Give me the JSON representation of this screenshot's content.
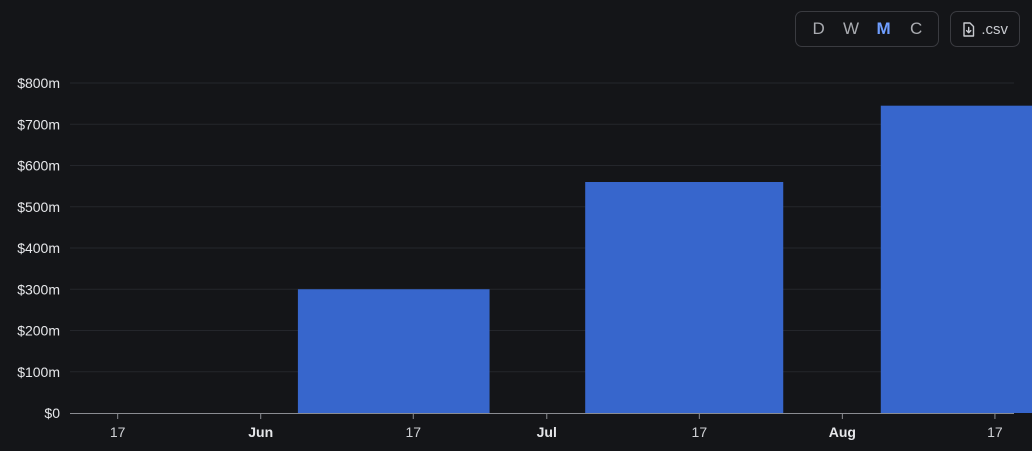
{
  "toolbar": {
    "periods": [
      {
        "label": "D",
        "active": false
      },
      {
        "label": "W",
        "active": false
      },
      {
        "label": "M",
        "active": true
      },
      {
        "label": "C",
        "active": false
      }
    ],
    "csv_label": ".csv",
    "csv_icon": "file-download-icon"
  },
  "colors": {
    "background": "#141518",
    "bar": "#3766cc",
    "active_period": "#6f9eff",
    "grid": "#24262b",
    "axis": "#8a8c91"
  },
  "chart_data": {
    "type": "bar",
    "x_axis_type": "date",
    "x_ticks": [
      {
        "date": "2024-05-17",
        "label": "17",
        "major": false
      },
      {
        "date": "2024-06-01",
        "label": "Jun",
        "major": true
      },
      {
        "date": "2024-06-17",
        "label": "17",
        "major": false
      },
      {
        "date": "2024-07-01",
        "label": "Jul",
        "major": true
      },
      {
        "date": "2024-07-17",
        "label": "17",
        "major": false
      },
      {
        "date": "2024-08-01",
        "label": "Aug",
        "major": true
      },
      {
        "date": "2024-08-17",
        "label": "17",
        "major": false
      }
    ],
    "categories": [
      "Jun",
      "Jul",
      "Aug"
    ],
    "bar_start_dates": [
      "2024-06-01",
      "2024-07-01",
      "2024-08-01"
    ],
    "values": [
      300,
      560,
      745
    ],
    "value_unit": "$m",
    "ylim": [
      0,
      800
    ],
    "y_ticks": [
      0,
      100,
      200,
      300,
      400,
      500,
      600,
      700,
      800
    ],
    "y_tick_labels": [
      "$0",
      "$100m",
      "$200m",
      "$300m",
      "$400m",
      "$500m",
      "$600m",
      "$700m",
      "$800m"
    ],
    "xlim": [
      "2024-05-12",
      "2024-08-19"
    ],
    "grid": true,
    "title": "",
    "xlabel": "",
    "ylabel": ""
  }
}
